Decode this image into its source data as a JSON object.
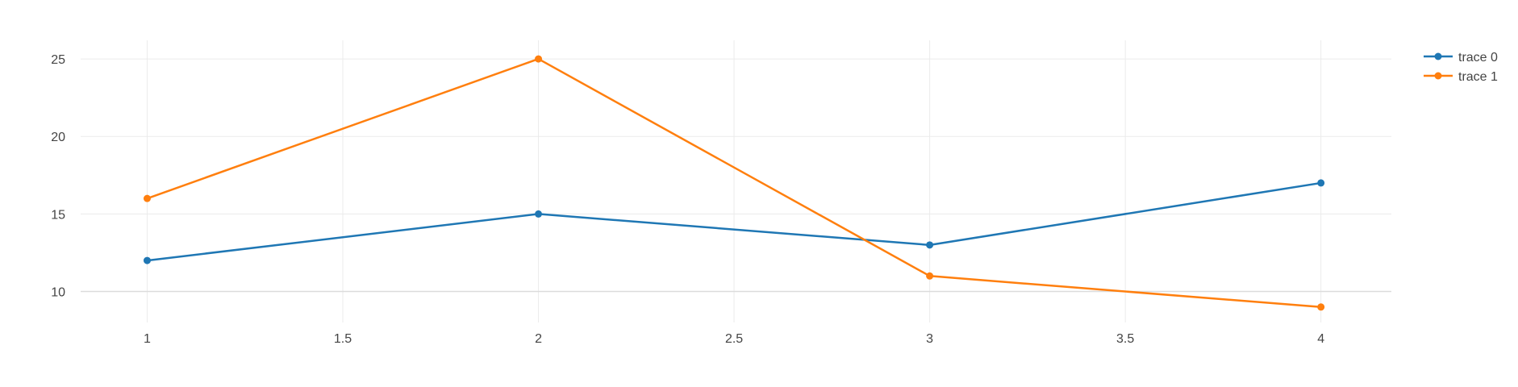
{
  "chart_data": {
    "type": "line",
    "x": [
      1,
      2,
      3,
      4
    ],
    "series": [
      {
        "name": "trace 0",
        "values": [
          12,
          15,
          13,
          17
        ],
        "color": "#1f77b4"
      },
      {
        "name": "trace 1",
        "values": [
          16,
          25,
          11,
          9
        ],
        "color": "#ff7f0e"
      }
    ],
    "xlim": [
      0.83,
      4.18
    ],
    "ylim": [
      8.0,
      26.2
    ],
    "xticks": [
      1,
      1.5,
      2,
      2.5,
      3,
      3.5,
      4
    ],
    "xtick_labels": [
      "1",
      "1.5",
      "2",
      "2.5",
      "3",
      "3.5",
      "4"
    ],
    "yticks": [
      10,
      15,
      20,
      25
    ],
    "ytick_labels": [
      "10",
      "15",
      "20",
      "25"
    ],
    "grid": true,
    "legend_position": "top-right",
    "title": "",
    "xlabel": "",
    "ylabel": ""
  }
}
